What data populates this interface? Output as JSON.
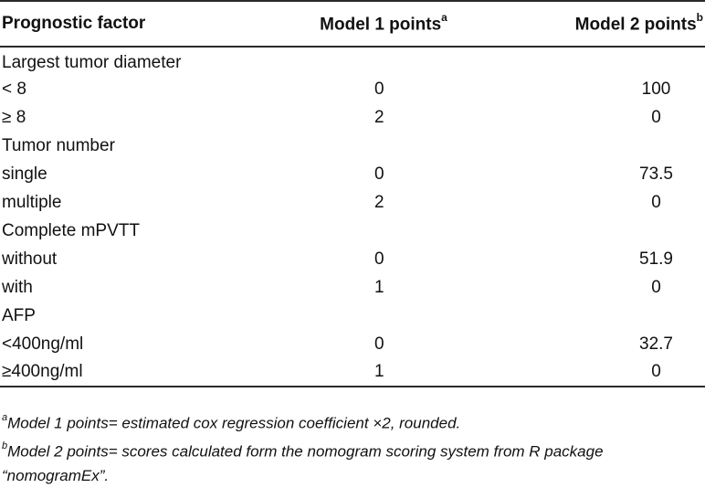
{
  "header": {
    "factor": "Prognostic factor",
    "model1": "Model 1 points",
    "model1_sup": "a",
    "model2": "Model 2 points",
    "model2_sup": "b"
  },
  "rows": [
    {
      "factor": "Largest tumor diameter",
      "m1": "",
      "m2": ""
    },
    {
      "factor": "< 8",
      "m1": "0",
      "m2": "100"
    },
    {
      "factor": "≥ 8",
      "m1": "2",
      "m2": "0"
    },
    {
      "factor": "Tumor number",
      "m1": "",
      "m2": ""
    },
    {
      "factor": "single",
      "m1": "0",
      "m2": "73.5"
    },
    {
      "factor": "multiple",
      "m1": "2",
      "m2": "0"
    },
    {
      "factor": "Complete mPVTT",
      "m1": "",
      "m2": ""
    },
    {
      "factor": "without",
      "m1": "0",
      "m2": "51.9"
    },
    {
      "factor": "with",
      "m1": "1",
      "m2": "0"
    },
    {
      "factor": "AFP",
      "m1": "",
      "m2": ""
    },
    {
      "factor": "<400ng/ml",
      "m1": "0",
      "m2": "32.7"
    },
    {
      "factor": "≥400ng/ml",
      "m1": "1",
      "m2": "0"
    }
  ],
  "footnotes": {
    "a_mark": "a",
    "a_text": "Model 1 points= estimated cox regression coefficient ×2, rounded.",
    "b_mark": "b",
    "b_text_line1": "Model 2 points= scores calculated form the nomogram scoring system from R package",
    "b_text_line2": "“nomogramEx”."
  }
}
